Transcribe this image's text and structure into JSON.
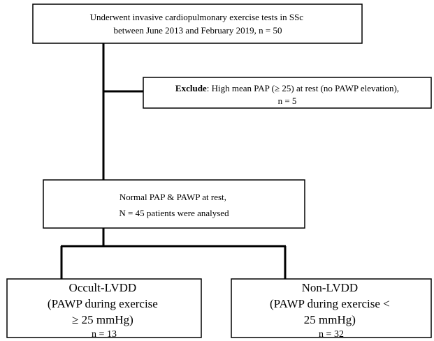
{
  "nodes": [
    {
      "lines": [
        "Underwent invasive cardiopulmonary exercise tests in SSc",
        "between June 2013 and February 2019, n = 50"
      ]
    },
    {
      "label": "Exclude",
      "text": ": High mean PAP (≥ 25) at rest (no PAWP elevation),",
      "lines": [
        "n = 5"
      ]
    },
    {
      "lines": [
        "Normal PAP & PAWP at rest,",
        "N = 45 patients were analysed"
      ]
    },
    {
      "lines": [
        "Occult-LVDD",
        "(PAWP during exercise",
        "≥ 25 mmHg)",
        "n = 13"
      ]
    },
    {
      "lines": [
        "Non-LVDD",
        "(PAWP during exercise <",
        "25 mmHg)",
        "n = 32"
      ]
    }
  ]
}
